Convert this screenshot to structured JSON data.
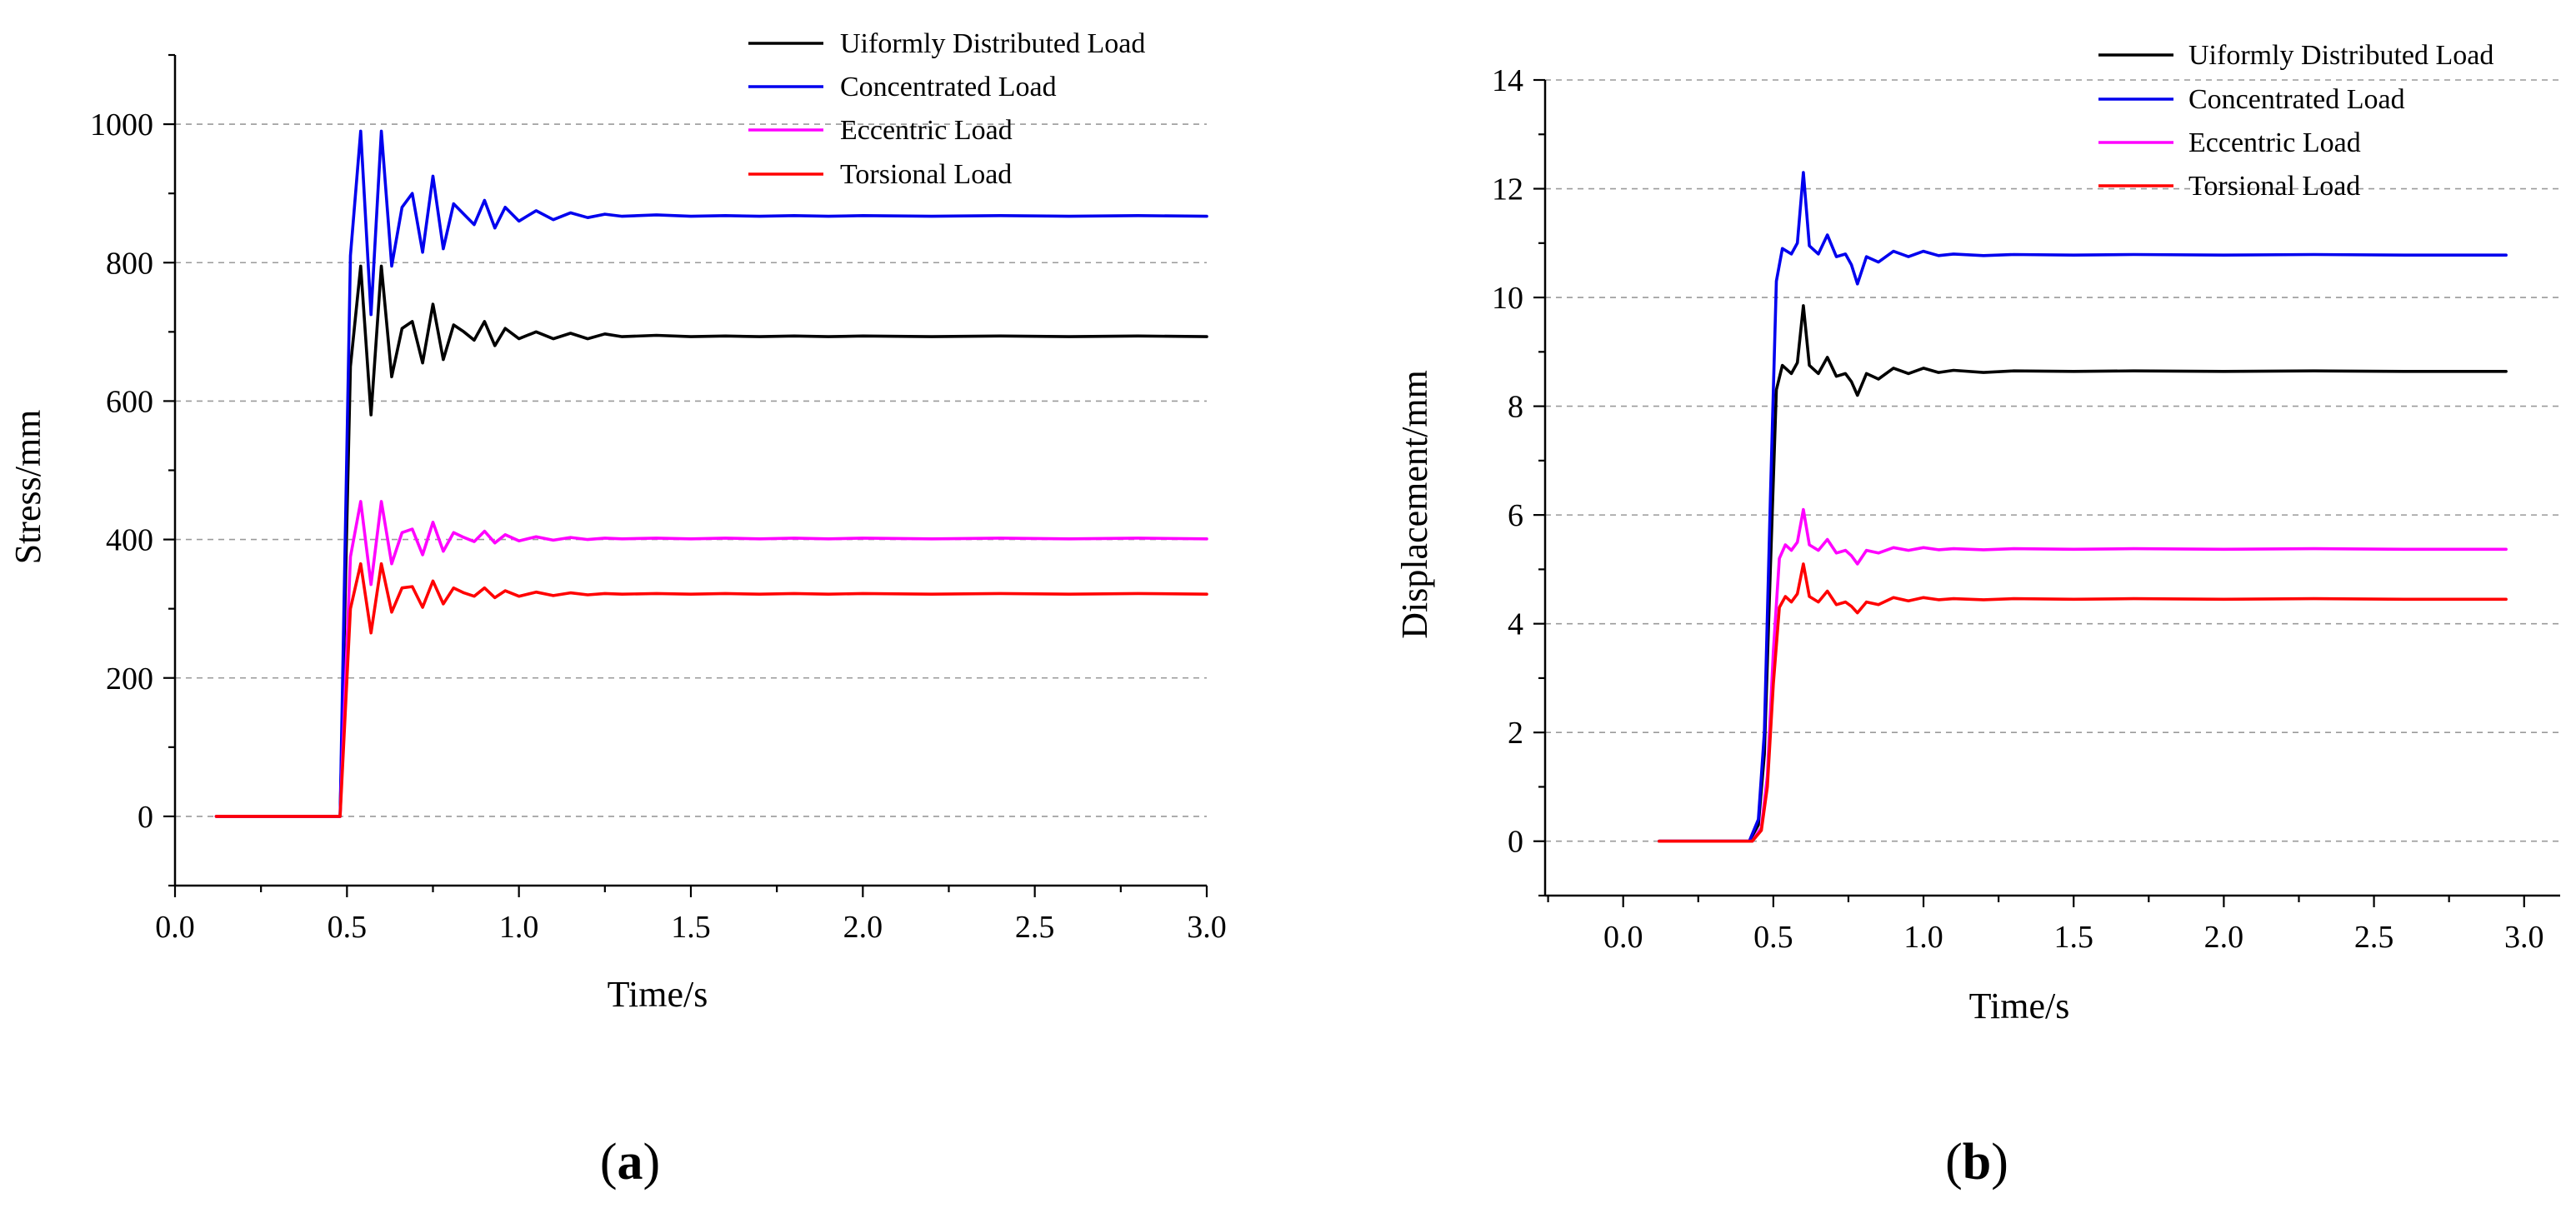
{
  "chart_data": [
    {
      "type": "line",
      "panel_label": "a",
      "xlabel": "Time/s",
      "ylabel": "Stress/mm",
      "xlim": [
        0.0,
        3.0
      ],
      "ylim": [
        -100,
        1100
      ],
      "xticks": [
        0.0,
        0.5,
        1.0,
        1.5,
        2.0,
        2.5,
        3.0
      ],
      "xtick_labels": [
        "0.0",
        "0.5",
        "1.0",
        "1.5",
        "2.0",
        "2.5",
        "3.0"
      ],
      "yticks": [
        0,
        200,
        400,
        600,
        800,
        1000
      ],
      "ytick_labels": [
        "0",
        "200",
        "400",
        "600",
        "800",
        "1000"
      ],
      "grid": "horizontal dashed",
      "legend_position": "top-right",
      "series": [
        {
          "name": "Uiformly Distributed Load",
          "color": "#000000",
          "x": [
            0.12,
            0.48,
            0.51,
            0.54,
            0.57,
            0.6,
            0.63,
            0.66,
            0.69,
            0.72,
            0.75,
            0.78,
            0.81,
            0.84,
            0.87,
            0.9,
            0.93,
            0.96,
            1.0,
            1.05,
            1.1,
            1.15,
            1.2,
            1.25,
            1.3,
            1.4,
            1.5,
            1.6,
            1.7,
            1.8,
            1.9,
            2.0,
            2.2,
            2.4,
            2.6,
            2.8,
            3.0
          ],
          "y": [
            0,
            0,
            650,
            795,
            580,
            795,
            635,
            705,
            715,
            655,
            740,
            660,
            710,
            700,
            688,
            715,
            680,
            705,
            690,
            700,
            690,
            698,
            690,
            697,
            693,
            695,
            693,
            694,
            693,
            694,
            693,
            694,
            693,
            694,
            693,
            694,
            693
          ]
        },
        {
          "name": "Concentrated Load",
          "color": "#0000ee",
          "x": [
            0.12,
            0.48,
            0.51,
            0.54,
            0.57,
            0.6,
            0.63,
            0.66,
            0.69,
            0.72,
            0.75,
            0.78,
            0.81,
            0.84,
            0.87,
            0.9,
            0.93,
            0.96,
            1.0,
            1.05,
            1.1,
            1.15,
            1.2,
            1.25,
            1.3,
            1.4,
            1.5,
            1.6,
            1.7,
            1.8,
            1.9,
            2.0,
            2.2,
            2.4,
            2.6,
            2.8,
            3.0
          ],
          "y": [
            0,
            0,
            810,
            990,
            725,
            990,
            795,
            880,
            900,
            815,
            925,
            820,
            885,
            870,
            855,
            890,
            850,
            880,
            860,
            875,
            862,
            872,
            865,
            870,
            867,
            869,
            867,
            868,
            867,
            868,
            867,
            868,
            867,
            868,
            867,
            868,
            867
          ]
        },
        {
          "name": "Eccentric Load",
          "color": "#ff00ff",
          "x": [
            0.12,
            0.48,
            0.51,
            0.54,
            0.57,
            0.6,
            0.63,
            0.66,
            0.69,
            0.72,
            0.75,
            0.78,
            0.81,
            0.84,
            0.87,
            0.9,
            0.93,
            0.96,
            1.0,
            1.05,
            1.1,
            1.15,
            1.2,
            1.25,
            1.3,
            1.4,
            1.5,
            1.6,
            1.7,
            1.8,
            1.9,
            2.0,
            2.2,
            2.4,
            2.6,
            2.8,
            3.0
          ],
          "y": [
            0,
            0,
            375,
            455,
            335,
            455,
            365,
            410,
            415,
            378,
            425,
            383,
            410,
            403,
            397,
            412,
            395,
            407,
            398,
            404,
            399,
            403,
            400,
            402,
            401,
            402,
            401,
            402,
            401,
            402,
            401,
            402,
            401,
            402,
            401,
            402,
            401
          ]
        },
        {
          "name": "Torsional Load",
          "color": "#ff0000",
          "x": [
            0.12,
            0.48,
            0.51,
            0.54,
            0.57,
            0.6,
            0.63,
            0.66,
            0.69,
            0.72,
            0.75,
            0.78,
            0.81,
            0.84,
            0.87,
            0.9,
            0.93,
            0.96,
            1.0,
            1.05,
            1.1,
            1.15,
            1.2,
            1.25,
            1.3,
            1.4,
            1.5,
            1.6,
            1.7,
            1.8,
            1.9,
            2.0,
            2.2,
            2.4,
            2.6,
            2.8,
            3.0
          ],
          "y": [
            0,
            0,
            300,
            365,
            265,
            365,
            295,
            330,
            332,
            302,
            340,
            307,
            330,
            323,
            318,
            330,
            316,
            326,
            318,
            324,
            319,
            323,
            320,
            322,
            321,
            322,
            321,
            322,
            321,
            322,
            321,
            322,
            321,
            322,
            321,
            322,
            321
          ]
        }
      ]
    },
    {
      "type": "line",
      "panel_label": "b",
      "xlabel": "Time/s",
      "ylabel": "Displacement/mm",
      "xlim": [
        -0.26,
        3.12
      ],
      "ylim": [
        -1,
        14
      ],
      "xticks": [
        0.0,
        0.5,
        1.0,
        1.5,
        2.0,
        2.5,
        3.0
      ],
      "xtick_labels": [
        "0.0",
        "0.5",
        "1.0",
        "1.5",
        "2.0",
        "2.5",
        "3.0"
      ],
      "yticks": [
        0,
        2,
        4,
        6,
        8,
        10,
        12,
        14
      ],
      "ytick_labels": [
        "0",
        "2",
        "4",
        "6",
        "8",
        "10",
        "12",
        "14"
      ],
      "grid": "horizontal dashed",
      "legend_position": "top-right",
      "series": [
        {
          "name": "Uiformly Distributed Load",
          "color": "#000000",
          "x": [
            0.12,
            0.42,
            0.45,
            0.47,
            0.49,
            0.51,
            0.53,
            0.56,
            0.58,
            0.6,
            0.62,
            0.65,
            0.68,
            0.71,
            0.74,
            0.76,
            0.78,
            0.81,
            0.85,
            0.9,
            0.95,
            1.0,
            1.05,
            1.1,
            1.2,
            1.3,
            1.5,
            1.7,
            2.0,
            2.3,
            2.6,
            2.94
          ],
          "y": [
            0,
            0,
            0.3,
            1.6,
            5.0,
            8.3,
            8.75,
            8.6,
            8.8,
            9.85,
            8.75,
            8.6,
            8.9,
            8.55,
            8.6,
            8.45,
            8.2,
            8.6,
            8.5,
            8.7,
            8.6,
            8.7,
            8.62,
            8.66,
            8.62,
            8.65,
            8.64,
            8.65,
            8.64,
            8.65,
            8.64,
            8.64
          ]
        },
        {
          "name": "Concentrated Load",
          "color": "#0000ee",
          "x": [
            0.12,
            0.42,
            0.45,
            0.47,
            0.49,
            0.51,
            0.53,
            0.56,
            0.58,
            0.6,
            0.62,
            0.65,
            0.68,
            0.71,
            0.74,
            0.76,
            0.78,
            0.81,
            0.85,
            0.9,
            0.95,
            1.0,
            1.05,
            1.1,
            1.2,
            1.3,
            1.5,
            1.7,
            2.0,
            2.3,
            2.6,
            2.94
          ],
          "y": [
            0,
            0,
            0.4,
            2.0,
            6.3,
            10.3,
            10.9,
            10.8,
            11.0,
            12.3,
            10.95,
            10.8,
            11.15,
            10.75,
            10.8,
            10.6,
            10.25,
            10.75,
            10.65,
            10.85,
            10.75,
            10.85,
            10.77,
            10.8,
            10.77,
            10.79,
            10.78,
            10.79,
            10.78,
            10.79,
            10.78,
            10.78
          ]
        },
        {
          "name": "Eccentric Load",
          "color": "#ff00ff",
          "x": [
            0.12,
            0.43,
            0.46,
            0.48,
            0.5,
            0.52,
            0.54,
            0.56,
            0.58,
            0.6,
            0.62,
            0.65,
            0.68,
            0.71,
            0.74,
            0.76,
            0.78,
            0.81,
            0.85,
            0.9,
            0.95,
            1.0,
            1.05,
            1.1,
            1.2,
            1.3,
            1.5,
            1.7,
            2.0,
            2.3,
            2.6,
            2.94
          ],
          "y": [
            0,
            0,
            0.25,
            1.2,
            3.5,
            5.2,
            5.45,
            5.35,
            5.5,
            6.1,
            5.45,
            5.35,
            5.55,
            5.3,
            5.35,
            5.25,
            5.1,
            5.35,
            5.3,
            5.4,
            5.35,
            5.4,
            5.36,
            5.38,
            5.36,
            5.38,
            5.37,
            5.38,
            5.37,
            5.38,
            5.37,
            5.37
          ]
        },
        {
          "name": "Torsional Load",
          "color": "#ff0000",
          "x": [
            0.12,
            0.43,
            0.46,
            0.48,
            0.5,
            0.52,
            0.54,
            0.56,
            0.58,
            0.6,
            0.62,
            0.65,
            0.68,
            0.71,
            0.74,
            0.76,
            0.78,
            0.81,
            0.85,
            0.9,
            0.95,
            1.0,
            1.05,
            1.1,
            1.2,
            1.3,
            1.5,
            1.7,
            2.0,
            2.3,
            2.6,
            2.94
          ],
          "y": [
            0,
            0,
            0.2,
            1.0,
            2.9,
            4.3,
            4.5,
            4.4,
            4.55,
            5.1,
            4.5,
            4.4,
            4.6,
            4.35,
            4.4,
            4.32,
            4.2,
            4.4,
            4.35,
            4.48,
            4.42,
            4.48,
            4.44,
            4.46,
            4.44,
            4.46,
            4.45,
            4.46,
            4.45,
            4.46,
            4.45,
            4.45
          ]
        }
      ]
    }
  ]
}
